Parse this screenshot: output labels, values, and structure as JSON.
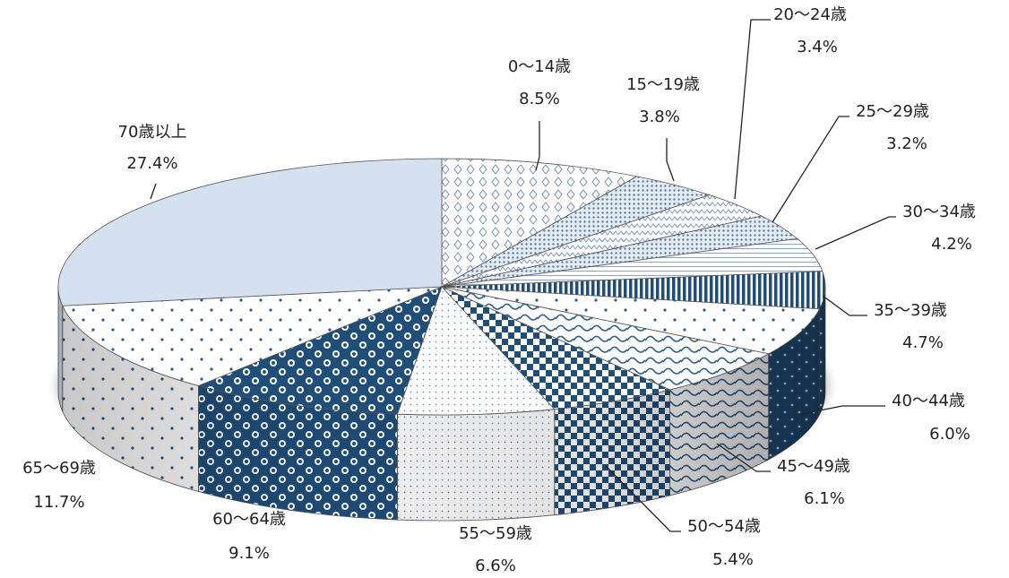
{
  "chart_data": {
    "type": "pie",
    "title": "",
    "slices": [
      {
        "label": "0～14歳",
        "value": 8.5,
        "value_label": "8.5%",
        "color": "#eef3f9",
        "pattern": "diamond"
      },
      {
        "label": "15～19歳",
        "value": 3.8,
        "value_label": "3.8%",
        "color": "#c6d3e3",
        "pattern": "dots-dense"
      },
      {
        "label": "20～24歳",
        "value": 3.4,
        "value_label": "3.4%",
        "color": "#eaf0f7",
        "pattern": "zigzag"
      },
      {
        "label": "25～29歳",
        "value": 3.2,
        "value_label": "3.2%",
        "color": "#9fb2cb",
        "pattern": "dots-dense"
      },
      {
        "label": "30～34歳",
        "value": 4.2,
        "value_label": "4.2%",
        "color": "#f7f9fc",
        "pattern": "h-lines"
      },
      {
        "label": "35～39歳",
        "value": 4.7,
        "value_label": "4.7%",
        "color": "#1f4e79",
        "pattern": "v-stripes"
      },
      {
        "label": "40～44歳",
        "value": 6.0,
        "value_label": "6.0%",
        "color": "#234f7c",
        "pattern": "sparse-dots"
      },
      {
        "label": "45～49歳",
        "value": 6.1,
        "value_label": "6.1%",
        "color": "#eef3f9",
        "pattern": "wave"
      },
      {
        "label": "50～54歳",
        "value": 5.4,
        "value_label": "5.4%",
        "color": "#1f4e79",
        "pattern": "checker"
      },
      {
        "label": "55～59歳",
        "value": 6.6,
        "value_label": "6.6%",
        "color": "#f3f6fa",
        "pattern": "fine-dots"
      },
      {
        "label": "60～64歳",
        "value": 9.1,
        "value_label": "9.1%",
        "color": "#1f4e79",
        "pattern": "circles"
      },
      {
        "label": "65～69歳",
        "value": 11.7,
        "value_label": "11.7%",
        "color": "#f5f7fb",
        "pattern": "sparse-dots"
      },
      {
        "label": "70歳以上",
        "value": 27.4,
        "value_label": "27.4%",
        "color": "#d5e1ee",
        "pattern": "solid"
      }
    ],
    "start_angle_deg": 90,
    "direction": "clockwise",
    "style": "3d-pie"
  }
}
